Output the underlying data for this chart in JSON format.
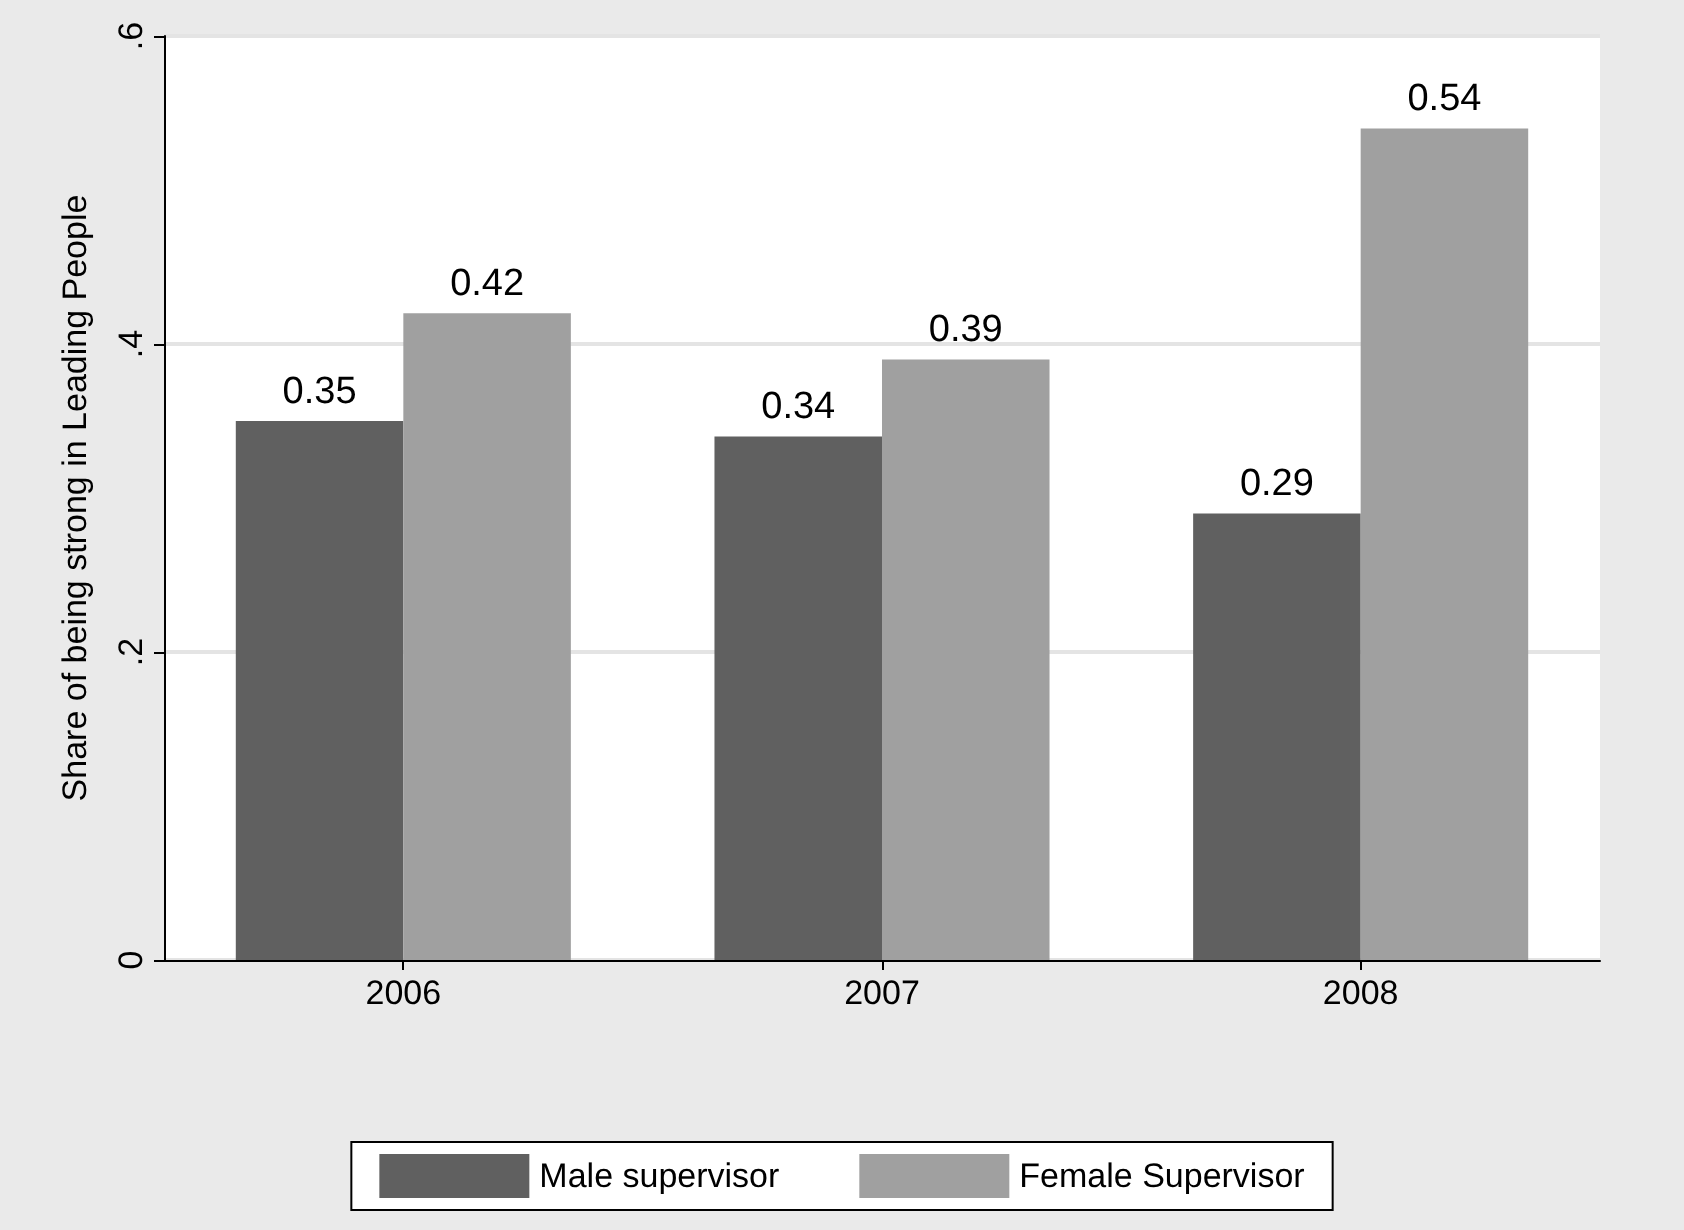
{
  "chart_data": {
    "type": "bar",
    "ylabel": "Share of being strong in Leading People",
    "categories": [
      "2006",
      "2007",
      "2008"
    ],
    "series": [
      {
        "name": "Male supervisor",
        "color": "#606060",
        "values": [
          0.35,
          0.34,
          0.29
        ]
      },
      {
        "name": "Female Supervisor",
        "color": "#a0a0a0",
        "values": [
          0.42,
          0.39,
          0.54
        ]
      }
    ],
    "ylim": [
      0,
      0.6
    ],
    "yticks": [
      0,
      {
        "value": 0.2,
        "label": ".2"
      },
      {
        "value": 0.4,
        "label": ".4"
      },
      {
        "value": 0.6,
        "label": ".6"
      }
    ],
    "grid": "y",
    "legend": "bottom",
    "data_labels": true
  }
}
